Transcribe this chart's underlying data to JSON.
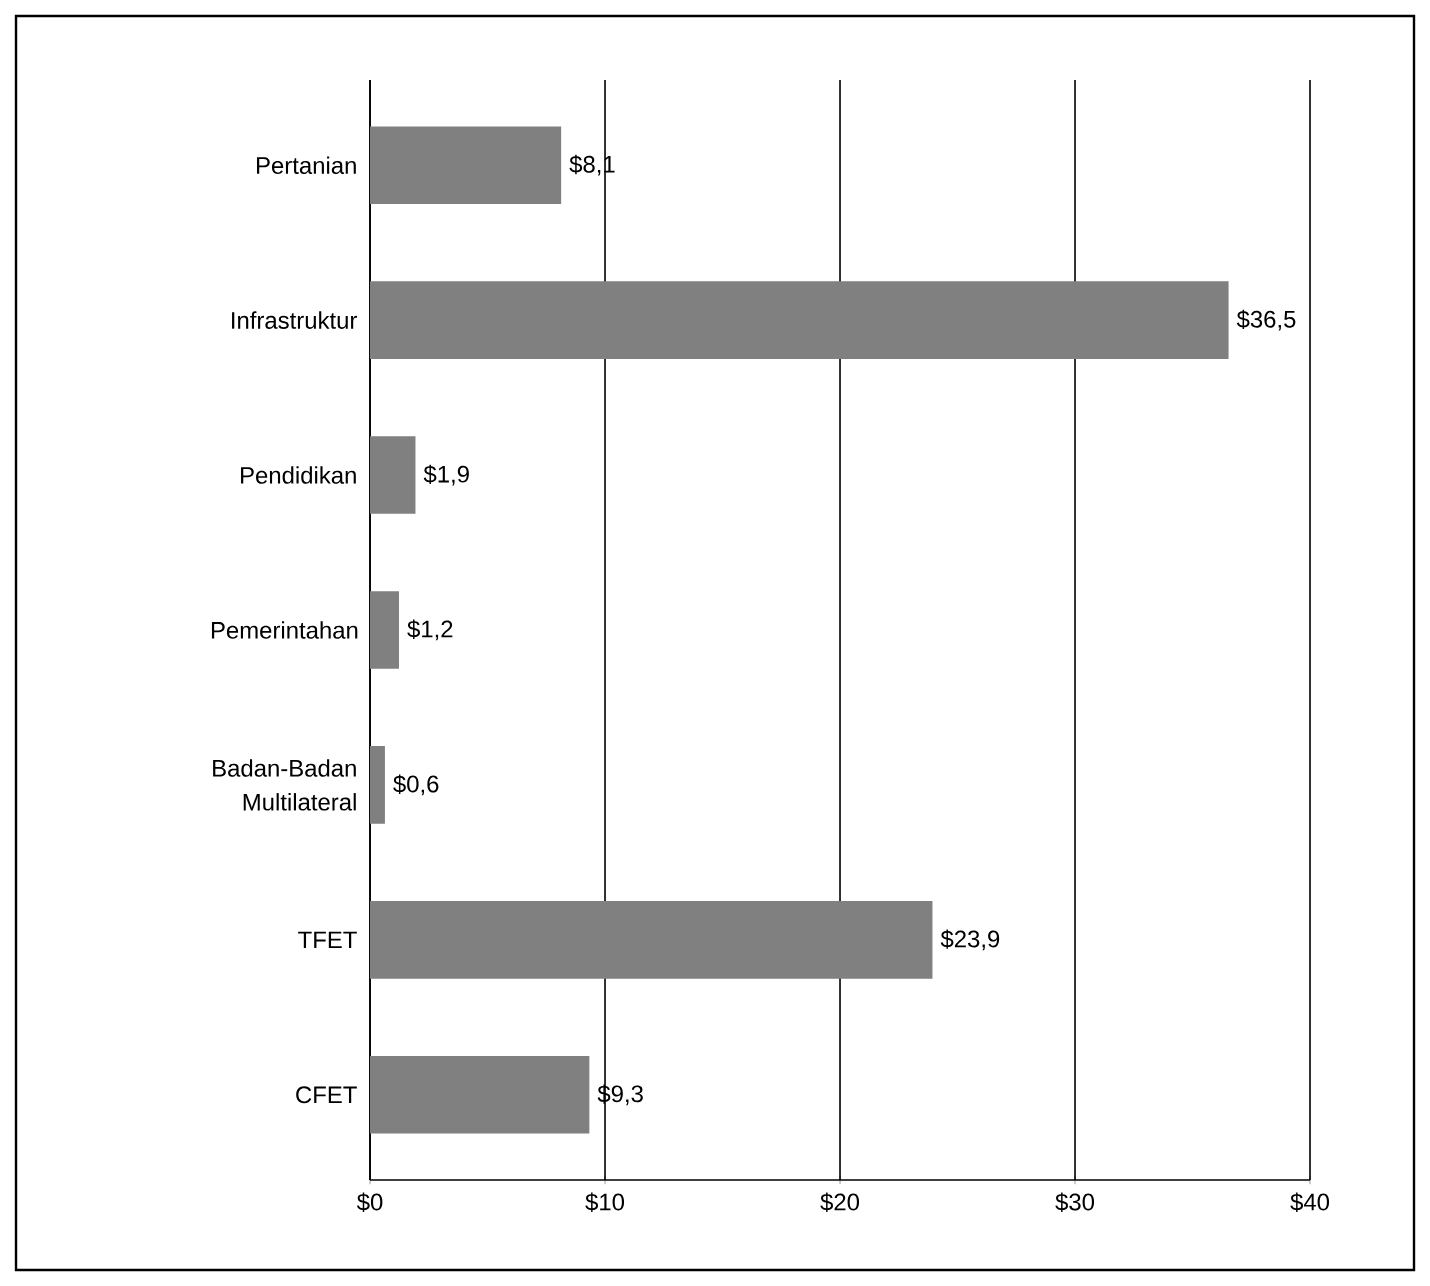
{
  "chart_data": {
    "type": "bar",
    "orientation": "horizontal",
    "categories": [
      "Pertanian",
      "Infrastruktur",
      "Pendidikan",
      "Pemerintahan",
      "Badan-Badan Multilateral",
      "TFET",
      "CFET"
    ],
    "values": [
      8.1,
      36.5,
      1.9,
      1.2,
      0.6,
      23.9,
      9.3
    ],
    "value_labels": [
      "$8,1",
      "$36,5",
      "$1,9",
      "$1,2",
      "$0,6",
      "$23,9",
      "$9,3"
    ],
    "color": "#808080",
    "xlim": [
      0,
      40
    ],
    "xticks": [
      {
        "value": 0,
        "label": "$0"
      },
      {
        "value": 10,
        "label": "$10"
      },
      {
        "value": 20,
        "label": "$20"
      },
      {
        "value": 30,
        "label": "$30"
      },
      {
        "value": 40,
        "label": "$40"
      }
    ],
    "grid": "x"
  }
}
